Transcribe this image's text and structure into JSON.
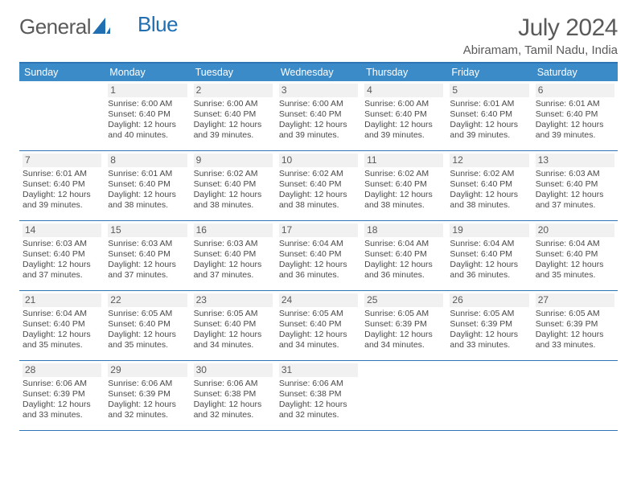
{
  "brand": {
    "part1": "General",
    "part2": "Blue"
  },
  "header": {
    "month_title": "July 2024",
    "location": "Abiramam, Tamil Nadu, India"
  },
  "colors": {
    "header_bg": "#3b8bc9",
    "header_text": "#ffffff",
    "rule": "#2f75b5",
    "daynum_bg": "#f1f1f1",
    "text": "#4a4a4a",
    "logo_gray": "#5a5a5a",
    "logo_blue": "#1f6fb2"
  },
  "day_headers": [
    "Sunday",
    "Monday",
    "Tuesday",
    "Wednesday",
    "Thursday",
    "Friday",
    "Saturday"
  ],
  "weeks": [
    [
      {
        "n": "",
        "sr": "",
        "ss": "",
        "d1": "",
        "d2": ""
      },
      {
        "n": "1",
        "sr": "Sunrise: 6:00 AM",
        "ss": "Sunset: 6:40 PM",
        "d1": "Daylight: 12 hours",
        "d2": "and 40 minutes."
      },
      {
        "n": "2",
        "sr": "Sunrise: 6:00 AM",
        "ss": "Sunset: 6:40 PM",
        "d1": "Daylight: 12 hours",
        "d2": "and 39 minutes."
      },
      {
        "n": "3",
        "sr": "Sunrise: 6:00 AM",
        "ss": "Sunset: 6:40 PM",
        "d1": "Daylight: 12 hours",
        "d2": "and 39 minutes."
      },
      {
        "n": "4",
        "sr": "Sunrise: 6:00 AM",
        "ss": "Sunset: 6:40 PM",
        "d1": "Daylight: 12 hours",
        "d2": "and 39 minutes."
      },
      {
        "n": "5",
        "sr": "Sunrise: 6:01 AM",
        "ss": "Sunset: 6:40 PM",
        "d1": "Daylight: 12 hours",
        "d2": "and 39 minutes."
      },
      {
        "n": "6",
        "sr": "Sunrise: 6:01 AM",
        "ss": "Sunset: 6:40 PM",
        "d1": "Daylight: 12 hours",
        "d2": "and 39 minutes."
      }
    ],
    [
      {
        "n": "7",
        "sr": "Sunrise: 6:01 AM",
        "ss": "Sunset: 6:40 PM",
        "d1": "Daylight: 12 hours",
        "d2": "and 39 minutes."
      },
      {
        "n": "8",
        "sr": "Sunrise: 6:01 AM",
        "ss": "Sunset: 6:40 PM",
        "d1": "Daylight: 12 hours",
        "d2": "and 38 minutes."
      },
      {
        "n": "9",
        "sr": "Sunrise: 6:02 AM",
        "ss": "Sunset: 6:40 PM",
        "d1": "Daylight: 12 hours",
        "d2": "and 38 minutes."
      },
      {
        "n": "10",
        "sr": "Sunrise: 6:02 AM",
        "ss": "Sunset: 6:40 PM",
        "d1": "Daylight: 12 hours",
        "d2": "and 38 minutes."
      },
      {
        "n": "11",
        "sr": "Sunrise: 6:02 AM",
        "ss": "Sunset: 6:40 PM",
        "d1": "Daylight: 12 hours",
        "d2": "and 38 minutes."
      },
      {
        "n": "12",
        "sr": "Sunrise: 6:02 AM",
        "ss": "Sunset: 6:40 PM",
        "d1": "Daylight: 12 hours",
        "d2": "and 38 minutes."
      },
      {
        "n": "13",
        "sr": "Sunrise: 6:03 AM",
        "ss": "Sunset: 6:40 PM",
        "d1": "Daylight: 12 hours",
        "d2": "and 37 minutes."
      }
    ],
    [
      {
        "n": "14",
        "sr": "Sunrise: 6:03 AM",
        "ss": "Sunset: 6:40 PM",
        "d1": "Daylight: 12 hours",
        "d2": "and 37 minutes."
      },
      {
        "n": "15",
        "sr": "Sunrise: 6:03 AM",
        "ss": "Sunset: 6:40 PM",
        "d1": "Daylight: 12 hours",
        "d2": "and 37 minutes."
      },
      {
        "n": "16",
        "sr": "Sunrise: 6:03 AM",
        "ss": "Sunset: 6:40 PM",
        "d1": "Daylight: 12 hours",
        "d2": "and 37 minutes."
      },
      {
        "n": "17",
        "sr": "Sunrise: 6:04 AM",
        "ss": "Sunset: 6:40 PM",
        "d1": "Daylight: 12 hours",
        "d2": "and 36 minutes."
      },
      {
        "n": "18",
        "sr": "Sunrise: 6:04 AM",
        "ss": "Sunset: 6:40 PM",
        "d1": "Daylight: 12 hours",
        "d2": "and 36 minutes."
      },
      {
        "n": "19",
        "sr": "Sunrise: 6:04 AM",
        "ss": "Sunset: 6:40 PM",
        "d1": "Daylight: 12 hours",
        "d2": "and 36 minutes."
      },
      {
        "n": "20",
        "sr": "Sunrise: 6:04 AM",
        "ss": "Sunset: 6:40 PM",
        "d1": "Daylight: 12 hours",
        "d2": "and 35 minutes."
      }
    ],
    [
      {
        "n": "21",
        "sr": "Sunrise: 6:04 AM",
        "ss": "Sunset: 6:40 PM",
        "d1": "Daylight: 12 hours",
        "d2": "and 35 minutes."
      },
      {
        "n": "22",
        "sr": "Sunrise: 6:05 AM",
        "ss": "Sunset: 6:40 PM",
        "d1": "Daylight: 12 hours",
        "d2": "and 35 minutes."
      },
      {
        "n": "23",
        "sr": "Sunrise: 6:05 AM",
        "ss": "Sunset: 6:40 PM",
        "d1": "Daylight: 12 hours",
        "d2": "and 34 minutes."
      },
      {
        "n": "24",
        "sr": "Sunrise: 6:05 AM",
        "ss": "Sunset: 6:40 PM",
        "d1": "Daylight: 12 hours",
        "d2": "and 34 minutes."
      },
      {
        "n": "25",
        "sr": "Sunrise: 6:05 AM",
        "ss": "Sunset: 6:39 PM",
        "d1": "Daylight: 12 hours",
        "d2": "and 34 minutes."
      },
      {
        "n": "26",
        "sr": "Sunrise: 6:05 AM",
        "ss": "Sunset: 6:39 PM",
        "d1": "Daylight: 12 hours",
        "d2": "and 33 minutes."
      },
      {
        "n": "27",
        "sr": "Sunrise: 6:05 AM",
        "ss": "Sunset: 6:39 PM",
        "d1": "Daylight: 12 hours",
        "d2": "and 33 minutes."
      }
    ],
    [
      {
        "n": "28",
        "sr": "Sunrise: 6:06 AM",
        "ss": "Sunset: 6:39 PM",
        "d1": "Daylight: 12 hours",
        "d2": "and 33 minutes."
      },
      {
        "n": "29",
        "sr": "Sunrise: 6:06 AM",
        "ss": "Sunset: 6:39 PM",
        "d1": "Daylight: 12 hours",
        "d2": "and 32 minutes."
      },
      {
        "n": "30",
        "sr": "Sunrise: 6:06 AM",
        "ss": "Sunset: 6:38 PM",
        "d1": "Daylight: 12 hours",
        "d2": "and 32 minutes."
      },
      {
        "n": "31",
        "sr": "Sunrise: 6:06 AM",
        "ss": "Sunset: 6:38 PM",
        "d1": "Daylight: 12 hours",
        "d2": "and 32 minutes."
      },
      {
        "n": "",
        "sr": "",
        "ss": "",
        "d1": "",
        "d2": ""
      },
      {
        "n": "",
        "sr": "",
        "ss": "",
        "d1": "",
        "d2": ""
      },
      {
        "n": "",
        "sr": "",
        "ss": "",
        "d1": "",
        "d2": ""
      }
    ]
  ]
}
